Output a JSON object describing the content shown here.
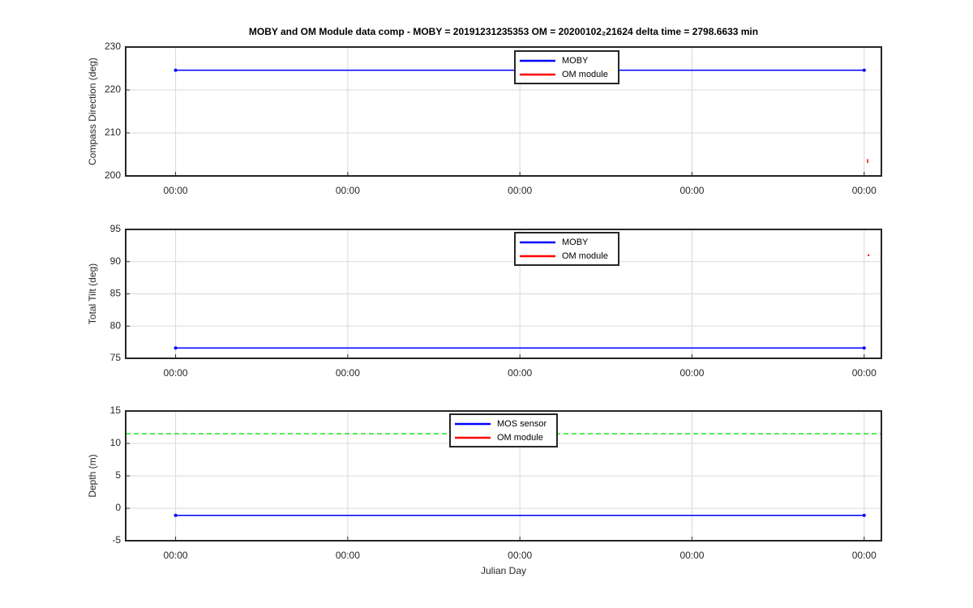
{
  "title": "MOBY and OM Module data comp - MOBY = 20191231235353 OM = 20200102₂21624 delta time = 2798.6633 min",
  "chart_data": [
    {
      "type": "line",
      "ylabel": "Compass Direction (deg)",
      "xlim": [
        -0.29,
        4.1
      ],
      "xticks": [
        {
          "value": 0,
          "label": "00:00"
        },
        {
          "value": 1,
          "label": "00:00"
        },
        {
          "value": 2,
          "label": "00:00"
        },
        {
          "value": 3,
          "label": "00:00"
        },
        {
          "value": 4,
          "label": "00:00"
        }
      ],
      "ylim": [
        200,
        230
      ],
      "yticks": [
        200,
        210,
        220,
        230
      ],
      "grid": true,
      "series": [
        {
          "name": "MOBY",
          "color": "#0000ff",
          "x": [
            0,
            4
          ],
          "values": [
            224.6,
            224.6
          ]
        },
        {
          "name": "OM module",
          "color": "#ff0000",
          "x": [
            4.02,
            4.02
          ],
          "values": [
            203,
            203.9
          ]
        }
      ]
    },
    {
      "type": "line",
      "ylabel": "Total Tilt (deg)",
      "xlim": [
        -0.29,
        4.1
      ],
      "xticks": [
        {
          "value": 0,
          "label": "00:00"
        },
        {
          "value": 1,
          "label": "00:00"
        },
        {
          "value": 2,
          "label": "00:00"
        },
        {
          "value": 3,
          "label": "00:00"
        },
        {
          "value": 4,
          "label": "00:00"
        }
      ],
      "ylim": [
        75,
        95
      ],
      "yticks": [
        75,
        80,
        85,
        90,
        95
      ],
      "grid": true,
      "series": [
        {
          "name": "MOBY",
          "color": "#0000ff",
          "x": [
            0,
            4
          ],
          "values": [
            76.6,
            76.6
          ]
        },
        {
          "name": "OM module",
          "color": "#ff0000",
          "x": [
            4.02,
            4.03
          ],
          "values": [
            91,
            91
          ]
        }
      ]
    },
    {
      "type": "line",
      "ylabel": "Depth (m)",
      "xlabel": "Julian Day",
      "xlim": [
        -0.29,
        4.1
      ],
      "xticks": [
        {
          "value": 0,
          "label": "00:00"
        },
        {
          "value": 1,
          "label": "00:00"
        },
        {
          "value": 2,
          "label": "00:00"
        },
        {
          "value": 3,
          "label": "00:00"
        },
        {
          "value": 4,
          "label": "00:00"
        }
      ],
      "ylim": [
        -5,
        15
      ],
      "yticks": [
        -5,
        0,
        5,
        10,
        15
      ],
      "grid": true,
      "reference_line": {
        "value": 11.5,
        "color": "#22dd22"
      },
      "series": [
        {
          "name": "MOS sensor",
          "color": "#0000ff",
          "x": [
            0,
            4
          ],
          "values": [
            -1.1,
            -1.1
          ]
        },
        {
          "name": "OM module",
          "color": "#ff0000",
          "x": [],
          "values": []
        }
      ]
    }
  ]
}
